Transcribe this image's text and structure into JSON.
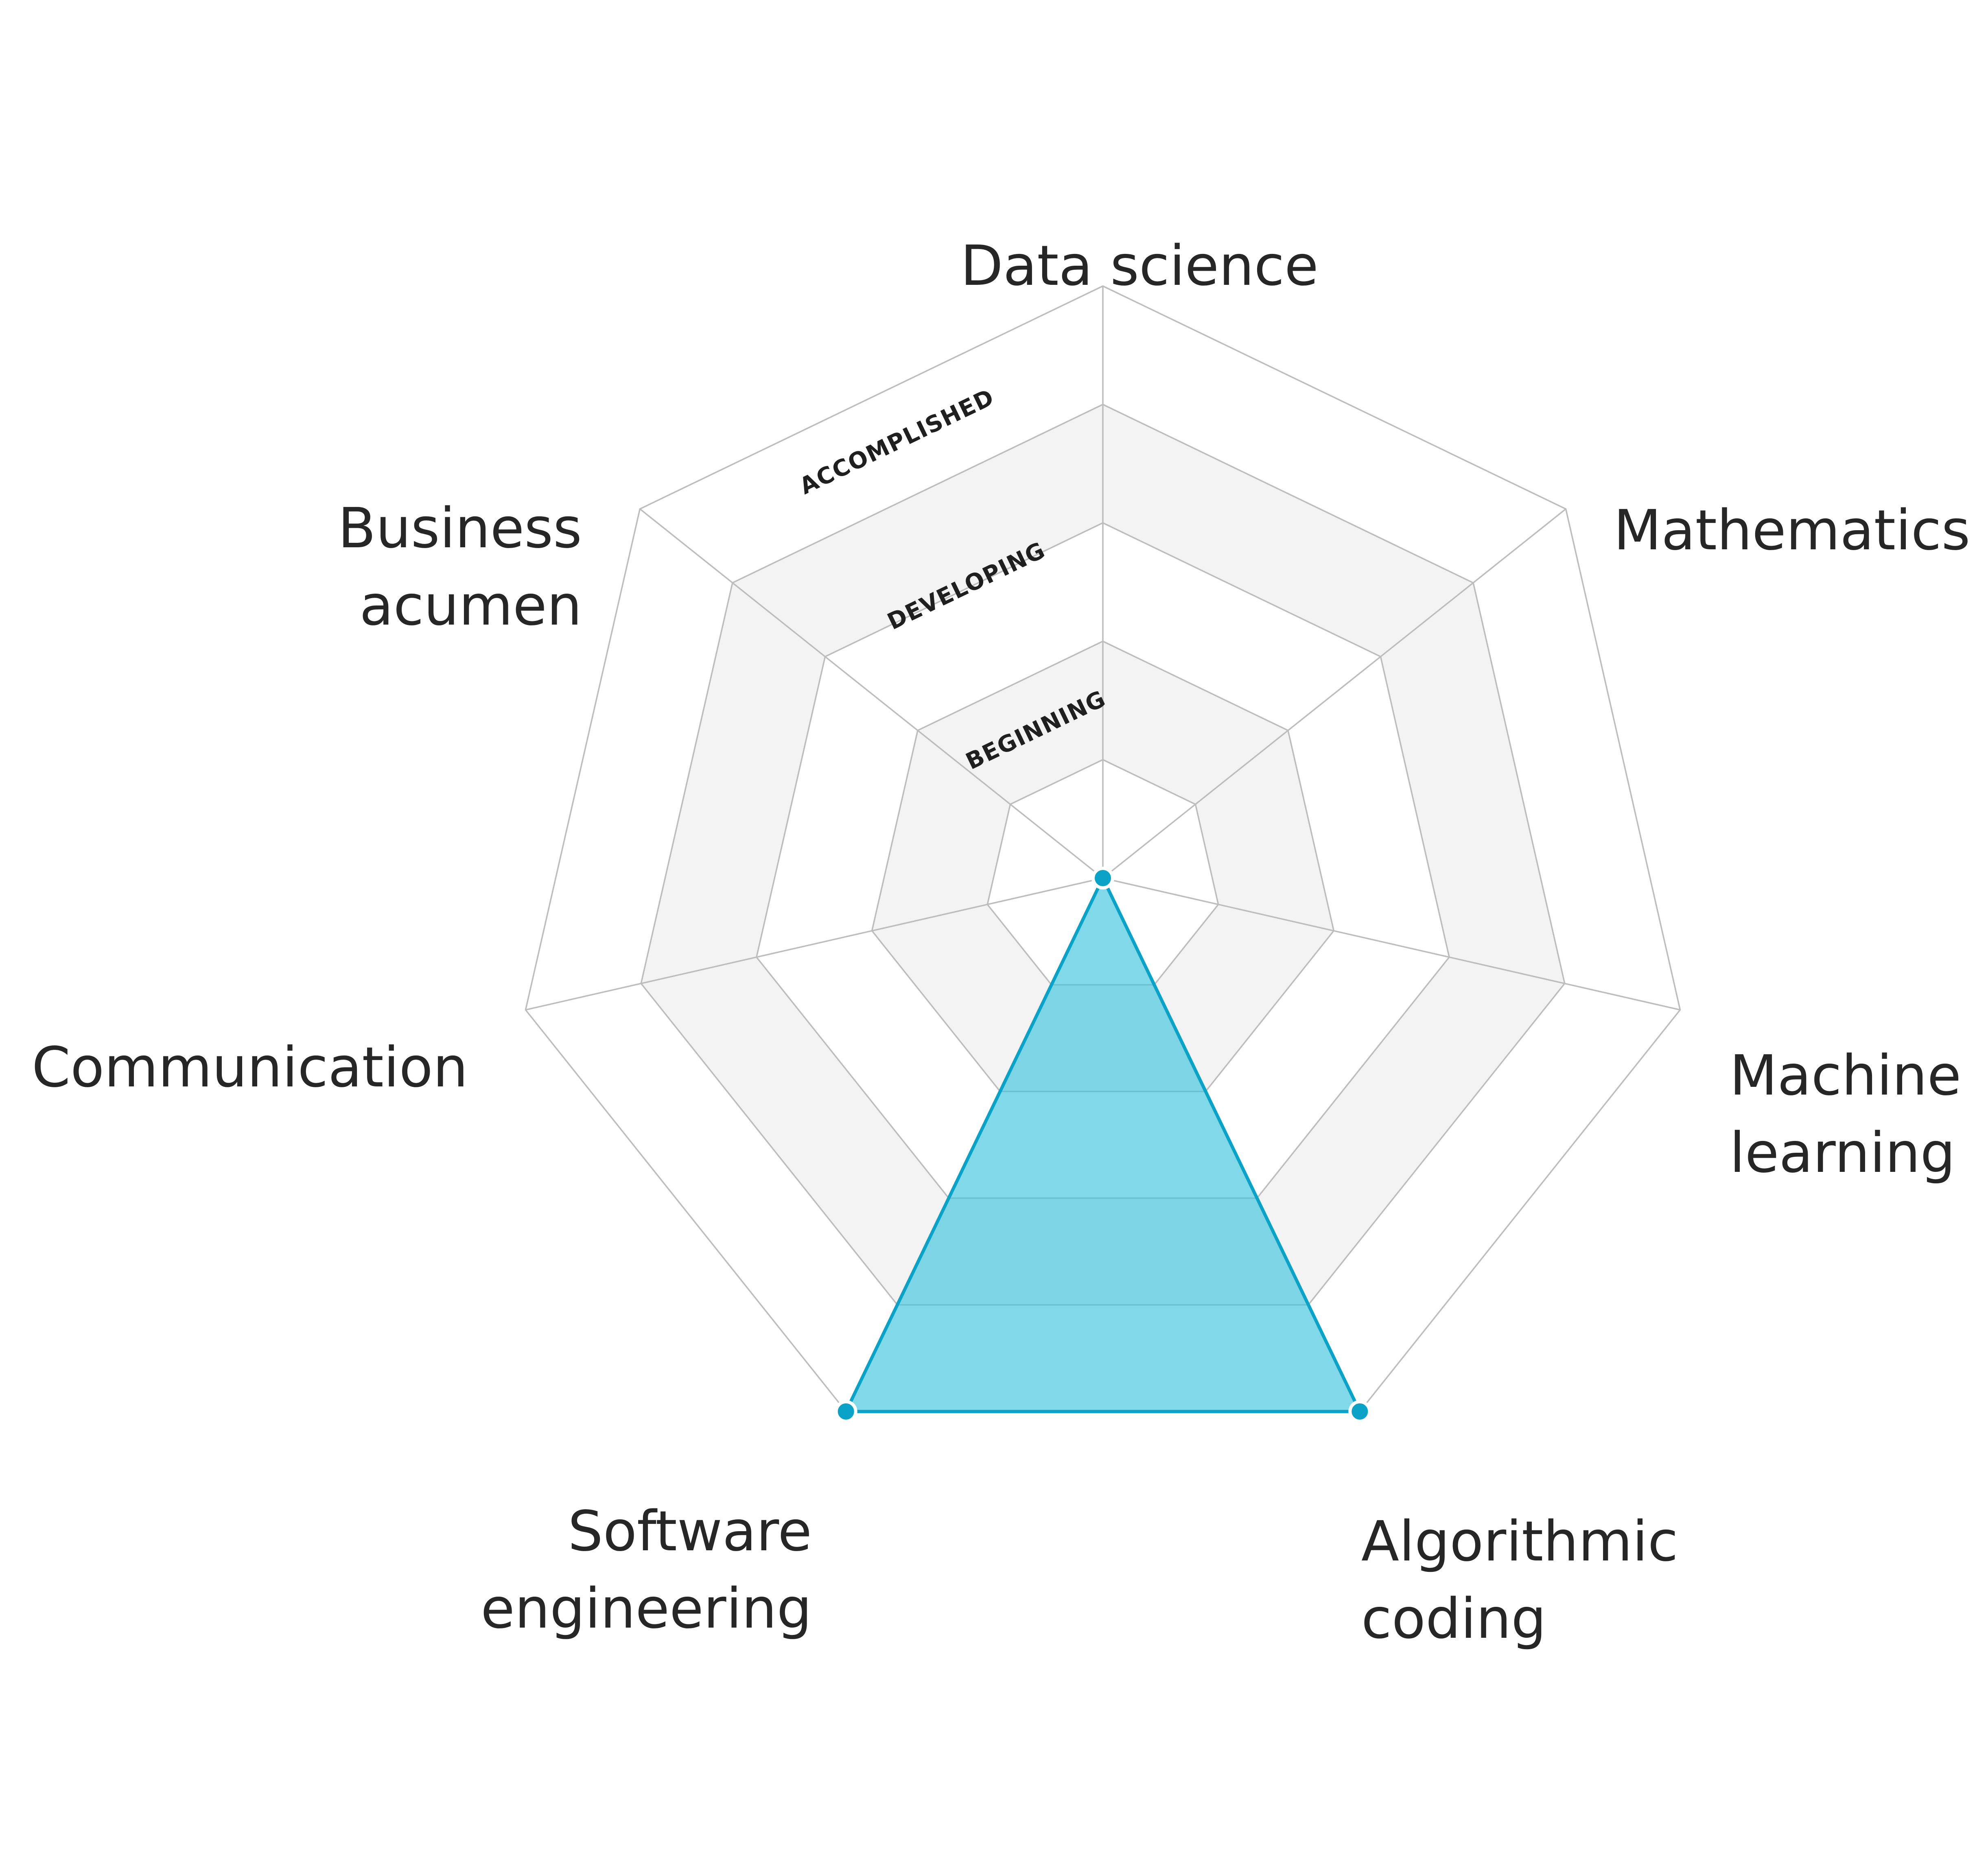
{
  "chart_data": {
    "type": "radar",
    "title": "",
    "axes": [
      "Data science",
      "Mathematics",
      "Machine learning",
      "Algorithmic coding",
      "Software engineering",
      "Communication",
      "Business acumen"
    ],
    "axis_label_lines": [
      [
        "Data science"
      ],
      [
        "Mathematics"
      ],
      [
        "Machine",
        "learning"
      ],
      [
        "Algorithmic",
        "coding"
      ],
      [
        "Software",
        "engineering"
      ],
      [
        "Communication"
      ],
      [
        "Business",
        "acumen"
      ]
    ],
    "levels": [
      "BEGINNING",
      "DEVELOPING",
      "ACCOMPLISHED"
    ],
    "range": [
      0,
      5
    ],
    "ring_count": 5,
    "values": [
      0,
      0,
      0,
      5,
      5,
      0,
      0
    ],
    "colors": {
      "fill": "#3ec3dc",
      "stroke": "#0aa3c7",
      "band": "#f3f3f3",
      "grid": "#bdbdbd",
      "text": "#262626"
    }
  }
}
